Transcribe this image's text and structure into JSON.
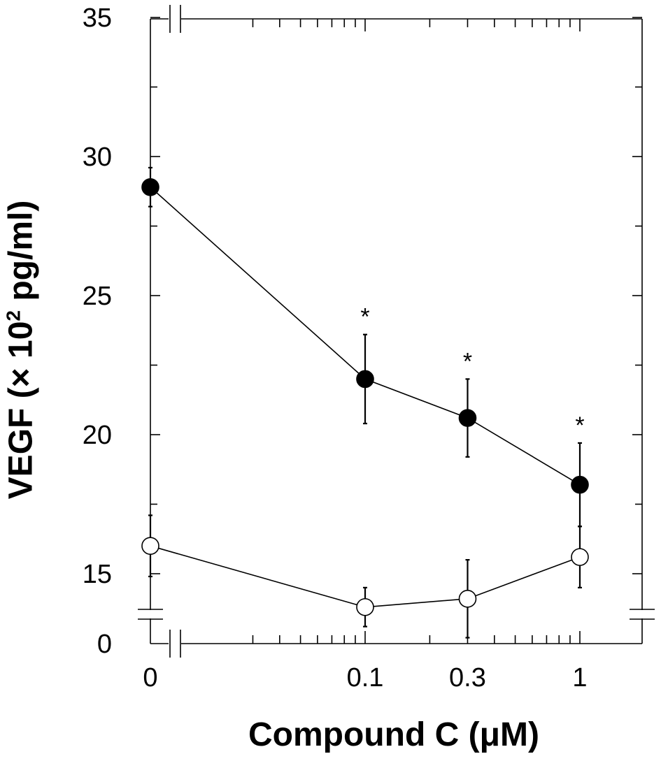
{
  "chart_data": {
    "type": "line",
    "title": "",
    "xlabel": "Compound C (μM)",
    "ylabel": {
      "prefix": "VEGF (× 10",
      "superscript": "2",
      "suffix": " pg/ml)"
    },
    "x": [
      0,
      0.1,
      0.3,
      1
    ],
    "x_tick_labels": [
      "0",
      "0.1",
      "0.3",
      "1"
    ],
    "x_scale": "log (broken axis between 0 and 0.1)",
    "y_tick_labels": [
      "0",
      "15",
      "20",
      "25",
      "30",
      "35"
    ],
    "y_scale": "broken axis between 0 and 15",
    "ylim": [
      0,
      35
    ],
    "grid": false,
    "series": [
      {
        "marker": "filled-circle",
        "values": [
          28.9,
          22.0,
          20.6,
          18.2
        ],
        "errors": [
          0.7,
          1.6,
          1.4,
          1.5
        ],
        "significance": [
          "",
          "*",
          "*",
          "*"
        ]
      },
      {
        "marker": "open-circle",
        "values": [
          16.0,
          13.8,
          14.1,
          15.6
        ],
        "errors": [
          1.1,
          0.7,
          1.4,
          1.1
        ],
        "significance": [
          "",
          "",
          "",
          ""
        ]
      }
    ],
    "colors": {
      "line": "#000000",
      "filled": "#000000",
      "open": "#ffffff"
    }
  }
}
